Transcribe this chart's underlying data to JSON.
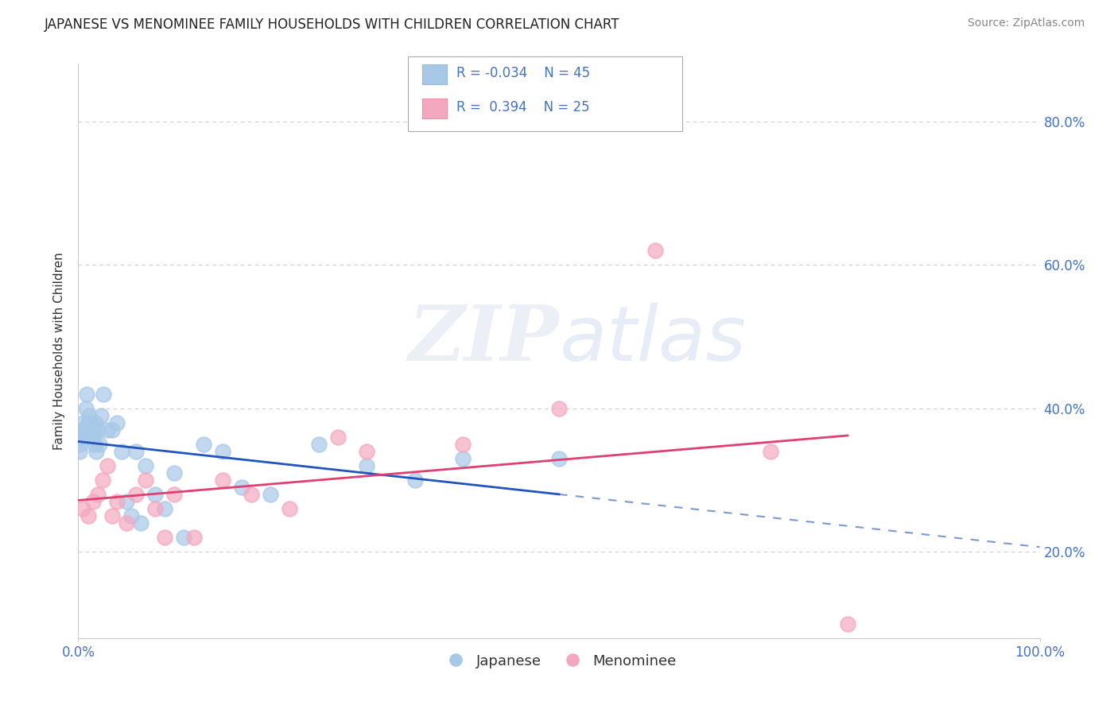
{
  "title": "JAPANESE VS MENOMINEE FAMILY HOUSEHOLDS WITH CHILDREN CORRELATION CHART",
  "source": "Source: ZipAtlas.com",
  "ylabel": "Family Households with Children",
  "watermark": "ZIPatlas",
  "japanese_color": "#a8c8e8",
  "menominee_color": "#f4a8c0",
  "trend_japanese_color": "#2255bb",
  "trend_menominee_color": "#e04070",
  "tick_color": "#4472c4",
  "grid_color": "#cccccc",
  "background_color": "#ffffff",
  "japanese_x": [
    0.1,
    0.2,
    0.3,
    0.4,
    0.5,
    0.6,
    0.7,
    0.8,
    0.9,
    1.0,
    1.1,
    1.2,
    1.3,
    1.4,
    1.5,
    1.6,
    1.7,
    1.8,
    1.9,
    2.0,
    2.2,
    2.4,
    2.6,
    3.0,
    3.5,
    4.0,
    4.5,
    5.0,
    5.5,
    6.0,
    6.5,
    7.0,
    8.0,
    9.0,
    10.0,
    11.0,
    13.0,
    15.0,
    17.0,
    20.0,
    25.0,
    30.0,
    35.0,
    40.0,
    50.0
  ],
  "japanese_y": [
    34.0,
    35.0,
    36.0,
    37.0,
    38.0,
    36.0,
    37.0,
    40.0,
    42.0,
    38.0,
    39.0,
    36.0,
    37.0,
    38.0,
    36.0,
    37.0,
    35.0,
    38.0,
    34.0,
    37.0,
    35.0,
    39.0,
    42.0,
    37.0,
    37.0,
    38.0,
    34.0,
    27.0,
    25.0,
    34.0,
    24.0,
    32.0,
    28.0,
    26.0,
    31.0,
    22.0,
    35.0,
    34.0,
    29.0,
    28.0,
    35.0,
    32.0,
    30.0,
    33.0,
    33.0
  ],
  "menominee_x": [
    0.5,
    1.0,
    1.5,
    2.0,
    2.5,
    3.0,
    3.5,
    4.0,
    5.0,
    6.0,
    7.0,
    8.0,
    9.0,
    10.0,
    12.0,
    15.0,
    18.0,
    22.0,
    27.0,
    30.0,
    40.0,
    50.0,
    60.0,
    72.0,
    80.0
  ],
  "menominee_y": [
    26.0,
    25.0,
    27.0,
    28.0,
    30.0,
    32.0,
    25.0,
    27.0,
    24.0,
    28.0,
    30.0,
    26.0,
    22.0,
    28.0,
    22.0,
    30.0,
    28.0,
    26.0,
    36.0,
    34.0,
    35.0,
    40.0,
    62.0,
    34.0,
    10.0
  ],
  "xlim": [
    0,
    100
  ],
  "ylim": [
    8,
    88
  ],
  "yticks": [
    20,
    40,
    60,
    80
  ],
  "ytick_labels": [
    "20.0%",
    "40.0%",
    "60.0%",
    "80.0%"
  ],
  "xticks": [
    0,
    100
  ],
  "xtick_labels": [
    "0.0%",
    "100.0%"
  ],
  "title_fontsize": 12,
  "source_fontsize": 10,
  "legend_fontsize": 12,
  "axis_fontsize": 11,
  "tick_fontsize": 12,
  "legend_r1": "R = -0.034",
  "legend_n1": "N = 45",
  "legend_r2": "R =  0.394",
  "legend_n2": "N = 25"
}
